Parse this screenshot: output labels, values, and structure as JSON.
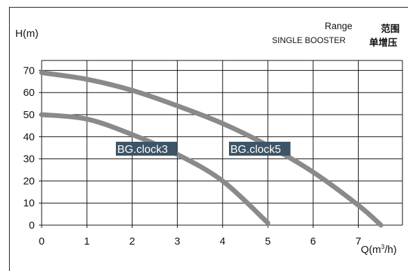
{
  "header": {
    "ylabel": "H(m)",
    "range_en": "Range",
    "range_cn": "范围",
    "single_en": "SINGLE BOOSTER",
    "single_cn": "单增压"
  },
  "chart_data": {
    "type": "line",
    "xlabel": "Q(m³/h)",
    "ylabel": "H(m)",
    "xlim": [
      0,
      8
    ],
    "ylim": [
      0,
      75
    ],
    "x_ticks": [
      "0",
      "1",
      "2",
      "3",
      "4",
      "5",
      "6",
      "7"
    ],
    "y_ticks": [
      "0",
      "10",
      "20",
      "30",
      "40",
      "50",
      "60",
      "70"
    ],
    "grid": true,
    "colors": {
      "curve": "#8a8a8a",
      "label_bg": "#3d5566",
      "label_text": "#ffffff",
      "grid": "#111111"
    },
    "series": [
      {
        "name": "BG.clock3",
        "x": [
          0,
          1,
          2,
          3,
          4,
          5
        ],
        "y": [
          50,
          48,
          41,
          32,
          20,
          1
        ]
      },
      {
        "name": "BG.clock5",
        "x": [
          0,
          1,
          2,
          3,
          4,
          5,
          6,
          7,
          7.5
        ],
        "y": [
          69,
          66,
          61,
          54,
          46,
          36,
          24,
          9,
          0
        ]
      }
    ]
  }
}
